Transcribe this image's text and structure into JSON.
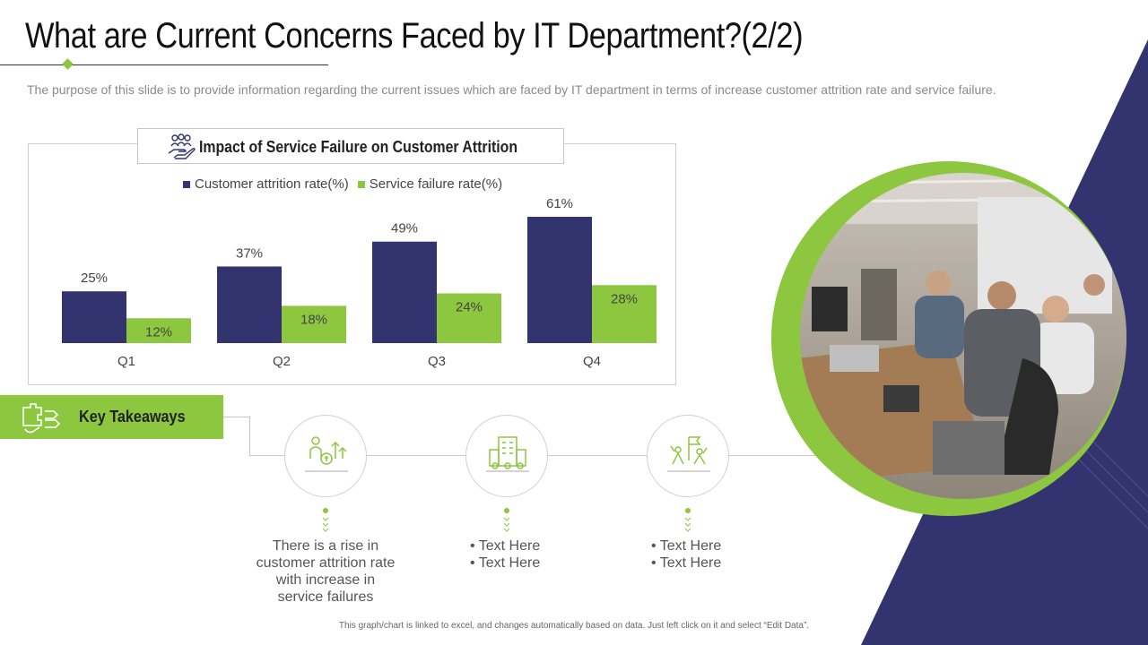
{
  "title": "What are Current Concerns Faced by IT Department?(2/2)",
  "subtitle": "The purpose of this slide is to provide information regarding the current  issues which are faced by IT department  in terms of increase customer  attrition rate and service failure.",
  "colors": {
    "navy": "#333370",
    "green": "#8dc63f",
    "lavender": "#eaeaf6"
  },
  "chart_data": {
    "type": "bar",
    "title": "Impact of Service Failure on Customer Attrition",
    "categories": [
      "Q1",
      "Q2",
      "Q3",
      "Q4"
    ],
    "series": [
      {
        "name": "Customer attrition rate(%)",
        "values": [
          25,
          37,
          49,
          61
        ],
        "labels": [
          "25%",
          "37%",
          "49%",
          "61%"
        ],
        "color": "#333370"
      },
      {
        "name": "Service failure rate(%)",
        "values": [
          12,
          18,
          24,
          28
        ],
        "labels": [
          "12%",
          "18%",
          "24%",
          "28%"
        ],
        "color": "#8dc63f"
      }
    ],
    "ylim": [
      0,
      61
    ],
    "legend": "top",
    "grid": false
  },
  "chart_icon": "people-hand-icon",
  "takeaways": {
    "label": "Key Takeaways",
    "icon": "hand-puzzle-icon",
    "items": [
      {
        "icon": "people-money-growth-icon",
        "text": "There is a rise in customer attrition rate with increase in service failures"
      },
      {
        "icon": "office-building-icon",
        "bullets": [
          "Text Here",
          "Text Here"
        ]
      },
      {
        "icon": "team-flag-icon",
        "bullets": [
          "Text Here",
          "Text Here"
        ]
      }
    ]
  },
  "photo_icon": "office-team-photo",
  "footnote": "This graph/chart is linked to excel, and changes automatically based on data. Just left click on it and select “Edit Data”."
}
